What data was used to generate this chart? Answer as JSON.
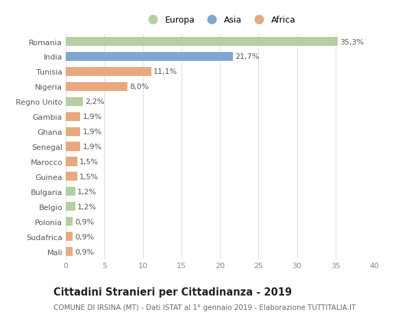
{
  "categories": [
    "Mali",
    "Sudafrica",
    "Polonia",
    "Belgio",
    "Bulgaria",
    "Guinea",
    "Marocco",
    "Senegal",
    "Ghana",
    "Gambia",
    "Regno Unito",
    "Nigeria",
    "Tunisia",
    "India",
    "Romania"
  ],
  "values": [
    0.9,
    0.9,
    0.9,
    1.2,
    1.2,
    1.5,
    1.5,
    1.9,
    1.9,
    1.9,
    2.2,
    8.0,
    11.1,
    21.7,
    35.3
  ],
  "labels": [
    "0,9%",
    "0,9%",
    "0,9%",
    "1,2%",
    "1,2%",
    "1,5%",
    "1,5%",
    "1,9%",
    "1,9%",
    "1,9%",
    "2,2%",
    "8,0%",
    "11,1%",
    "21,7%",
    "35,3%"
  ],
  "colors": [
    "#e8a97e",
    "#e8a97e",
    "#b5cfa0",
    "#b5cfa0",
    "#b5cfa0",
    "#e8a97e",
    "#e8a97e",
    "#e8a97e",
    "#e8a97e",
    "#e8a97e",
    "#b5cfa0",
    "#e8a97e",
    "#e8a97e",
    "#7fa8d1",
    "#b5cfa0"
  ],
  "legend_labels": [
    "Europa",
    "Asia",
    "Africa"
  ],
  "legend_colors": [
    "#b5cfa0",
    "#7fa8d1",
    "#e8a97e"
  ],
  "xlim": [
    0,
    40
  ],
  "xticks": [
    0,
    5,
    10,
    15,
    20,
    25,
    30,
    35,
    40
  ],
  "title": "Cittadini Stranieri per Cittadinanza - 2019",
  "subtitle": "COMUNE DI IRSINA (MT) - Dati ISTAT al 1° gennaio 2019 - Elaborazione TUTTITALIA.IT",
  "bg_color": "#ffffff",
  "grid_color": "#e0e0e0",
  "bar_height": 0.6,
  "label_fontsize": 8,
  "tick_fontsize": 8,
  "title_fontsize": 10.5,
  "subtitle_fontsize": 7.5
}
